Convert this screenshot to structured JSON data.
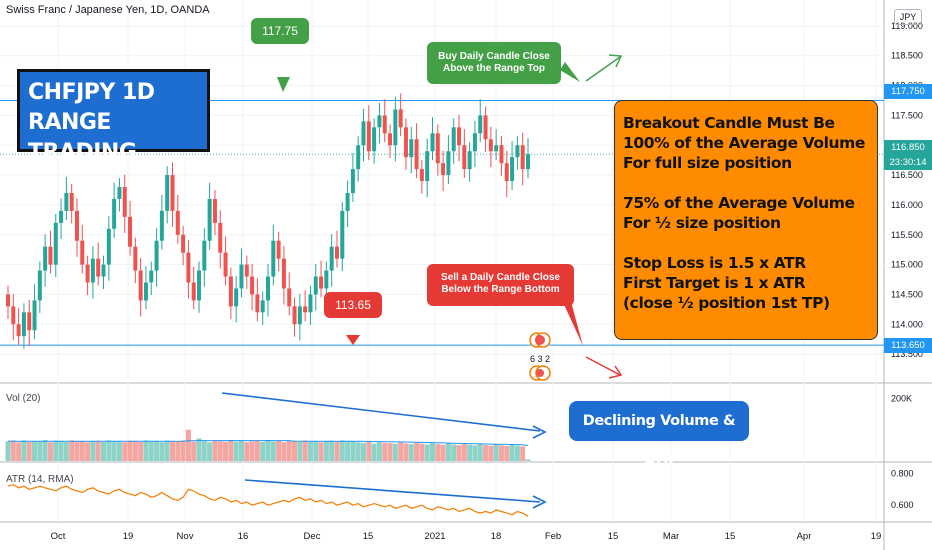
{
  "header": {
    "title": "Swiss Franc / Japanese Yen, 1D, OANDA",
    "currency_badge": "JPY"
  },
  "title_box": {
    "line1": "CHFJPY 1D",
    "line2": "RANGE TRADING"
  },
  "info_box": {
    "lines": [
      "Breakout Candle Must Be",
      "100% of the Average Volume",
      "For full size position",
      "",
      "75% of the Average Volume",
      "For ½ size position",
      "",
      "Stop Loss is 1.5 x ATR",
      "First Target is 1 x ATR",
      "(close ½ position 1st TP)"
    ],
    "color": "#ff8c00"
  },
  "buy_callout": {
    "line1": "Buy Daily Candle Close",
    "line2": "Above the Range Top",
    "color": "#43a047"
  },
  "sell_callout": {
    "line1": "Sell a Daily Candle Close",
    "line2": "Below the Range Bottom",
    "color": "#e53935"
  },
  "level_tags": {
    "top": "117.75",
    "bottom": "113.65"
  },
  "volume_note": "Declining Volume & ATR",
  "volume_label": "Vol (20)",
  "atr_label": "ATR (14, RMA)",
  "event_badge_text": "6 3 2",
  "price_axis": {
    "ticks": [
      "119.000",
      "118.500",
      "118.000",
      "117.500",
      "117.000",
      "116.500",
      "116.000",
      "115.500",
      "115.000",
      "114.500",
      "114.000",
      "113.500"
    ],
    "tag_top": "117.750",
    "tag_current": "116.850",
    "tag_countdown": "23:30:14",
    "tag_bottom": "113.650"
  },
  "volume_axis": {
    "tick": "200K"
  },
  "atr_axis": {
    "ticks": [
      "0.800",
      "0.600"
    ]
  },
  "time_axis": {
    "labels": [
      "Oct",
      "19",
      "Nov",
      "16",
      "Dec",
      "15",
      "2021",
      "18",
      "Feb",
      "15",
      "Mar",
      "15",
      "Apr",
      "19"
    ]
  },
  "colors": {
    "up": "#26a69a",
    "down": "#ef5350",
    "range_line": "#2196f3",
    "trend_line": "#1e6ed1",
    "atr_line": "#f57c00",
    "vol_up": "#8dd3c7",
    "vol_down": "#f4a6a3",
    "vol_ma": "#2196f3"
  },
  "chart_data": {
    "type": "candlestick",
    "title": "Swiss Franc / Japanese Yen, 1D, OANDA",
    "ylim": [
      113.2,
      119.3
    ],
    "range_top": 117.75,
    "range_bottom": 113.65,
    "last_close": 116.85,
    "x_labels": [
      "Oct",
      "19",
      "Nov",
      "16",
      "Dec",
      "15",
      "2021",
      "18",
      "Feb",
      "15",
      "Mar",
      "15",
      "Apr",
      "19"
    ],
    "closes": [
      114.3,
      114.0,
      113.8,
      114.2,
      113.9,
      114.4,
      114.9,
      115.3,
      115.0,
      115.7,
      115.9,
      116.2,
      115.9,
      115.4,
      115.0,
      114.7,
      115.1,
      114.8,
      115.0,
      115.6,
      116.1,
      116.3,
      115.8,
      115.3,
      114.9,
      114.4,
      114.7,
      114.9,
      115.4,
      115.9,
      116.5,
      115.9,
      115.5,
      115.2,
      114.7,
      114.4,
      114.9,
      115.4,
      116.1,
      115.7,
      115.2,
      114.8,
      114.3,
      114.6,
      115.0,
      114.8,
      114.5,
      114.2,
      114.4,
      114.8,
      115.4,
      115.1,
      114.6,
      114.3,
      114.0,
      114.3,
      114.2,
      114.5,
      114.8,
      114.6,
      114.9,
      115.3,
      115.1,
      115.9,
      116.2,
      116.6,
      117.0,
      117.4,
      116.9,
      117.3,
      117.5,
      117.2,
      117.0,
      117.6,
      117.3,
      116.8,
      117.1,
      116.6,
      116.4,
      116.9,
      117.2,
      116.7,
      116.5,
      116.9,
      117.3,
      117.0,
      116.6,
      116.9,
      117.2,
      117.5,
      117.1,
      116.9,
      117.0,
      116.7,
      116.4,
      116.8,
      117.0,
      116.6,
      116.85
    ],
    "volume": [
      63,
      65,
      60,
      66,
      61,
      64,
      62,
      67,
      60,
      65,
      63,
      61,
      66,
      62,
      64,
      60,
      63,
      65,
      61,
      66,
      62,
      64,
      60,
      65,
      63,
      61,
      66,
      62,
      64,
      60,
      65,
      63,
      61,
      66,
      100,
      62,
      72,
      64,
      60,
      65,
      63,
      61,
      66,
      62,
      64,
      60,
      63,
      65,
      61,
      66,
      62,
      64,
      60,
      65,
      63,
      61,
      66,
      62,
      64,
      60,
      63,
      65,
      61,
      66,
      62,
      64,
      60,
      58,
      62,
      56,
      60,
      58,
      57,
      55,
      59,
      56,
      54,
      58,
      55,
      53,
      57,
      54,
      52,
      56,
      53,
      51,
      55,
      52,
      50,
      54,
      51,
      49,
      53,
      50,
      48,
      52,
      49,
      47,
      5
    ],
    "atr": [
      0.72,
      0.73,
      0.71,
      0.72,
      0.7,
      0.71,
      0.72,
      0.71,
      0.7,
      0.69,
      0.71,
      0.72,
      0.7,
      0.69,
      0.68,
      0.7,
      0.71,
      0.69,
      0.68,
      0.67,
      0.69,
      0.7,
      0.68,
      0.67,
      0.66,
      0.68,
      0.67,
      0.65,
      0.66,
      0.68,
      0.66,
      0.64,
      0.63,
      0.65,
      0.7,
      0.69,
      0.67,
      0.66,
      0.64,
      0.63,
      0.65,
      0.64,
      0.62,
      0.63,
      0.61,
      0.62,
      0.6,
      0.61,
      0.62,
      0.6,
      0.61,
      0.62,
      0.63,
      0.62,
      0.64,
      0.65,
      0.63,
      0.64,
      0.62,
      0.63,
      0.61,
      0.62,
      0.6,
      0.61,
      0.62,
      0.6,
      0.61,
      0.59,
      0.6,
      0.61,
      0.6,
      0.59,
      0.6,
      0.58,
      0.59,
      0.6,
      0.58,
      0.59,
      0.6,
      0.58,
      0.57,
      0.59,
      0.58,
      0.57,
      0.58,
      0.56,
      0.57,
      0.58,
      0.56,
      0.55,
      0.56,
      0.55,
      0.57,
      0.56,
      0.55,
      0.54,
      0.56,
      0.55,
      0.53
    ],
    "volume_ylim": [
      0,
      240
    ],
    "atr_ylim": [
      0.5,
      0.86
    ]
  }
}
